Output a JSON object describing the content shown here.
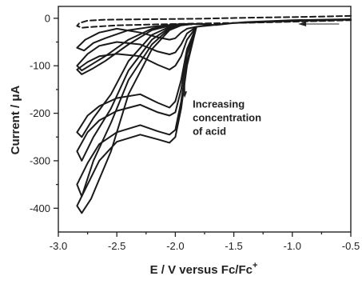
{
  "chart_data": {
    "type": "line",
    "title": "",
    "xlabel": "E / V versus Fc/Fc",
    "xlabel_superscript": "+",
    "ylabel": "Current / μA",
    "xlim": [
      -3.0,
      -0.5
    ],
    "ylim": [
      -450,
      25
    ],
    "x_reversed_axis_direction_note": "",
    "xticks": [
      -3.0,
      -2.5,
      -2.0,
      -1.5,
      -1.0,
      -0.5
    ],
    "xtick_labels": [
      "-3.0",
      "-2.5",
      "-2.0",
      "-1.5",
      "-1.0",
      "-0.5"
    ],
    "yticks": [
      0,
      -100,
      -200,
      -300,
      -400
    ],
    "ytick_labels": [
      "0",
      "-100",
      "-200",
      "-300",
      "-400"
    ],
    "grid": false,
    "legend": "none",
    "annotation": {
      "lines": [
        "Increasing",
        "concentration",
        "of acid"
      ],
      "arrow_direction": "down",
      "x": -1.92,
      "y": -90
    },
    "scan_arrow": {
      "direction": "left",
      "x_from": -0.6,
      "x_to": -0.95,
      "y": -12
    },
    "series": [
      {
        "style": "dashed",
        "x": [
          -0.5,
          -0.9,
          -1.4,
          -1.8,
          -2.2,
          -2.6,
          -2.75,
          -2.82,
          -2.84,
          -2.8,
          -2.7,
          -2.5,
          -2.2,
          -1.8,
          -1.3,
          -0.8,
          -0.5
        ],
        "y": [
          5,
          3,
          1,
          -1,
          -2,
          -3,
          -5,
          -10,
          -16,
          -20,
          -18,
          -15,
          -13,
          -11,
          -9,
          -6,
          -4
        ]
      },
      {
        "style": "solid",
        "x": [
          -0.5,
          -1.0,
          -1.4,
          -1.6,
          -1.7,
          -1.82,
          -1.9,
          -1.95,
          -2.0,
          -2.05,
          -2.15,
          -2.3,
          -2.5,
          -2.65,
          -2.77,
          -2.84,
          -2.78,
          -2.7,
          -2.6,
          -2.4,
          -2.2,
          -2.05,
          -1.95,
          -1.85,
          -1.75,
          -1.65,
          -1.5,
          -1.0,
          -0.5
        ],
        "y": [
          -2,
          -4,
          -8,
          -12,
          -15,
          -18,
          -22,
          -30,
          -42,
          -45,
          -40,
          -30,
          -22,
          -30,
          -45,
          -62,
          -68,
          -52,
          -42,
          -25,
          -18,
          -14,
          -12,
          -12,
          -13,
          -14,
          -10,
          -6,
          -3
        ]
      },
      {
        "style": "solid",
        "x": [
          -1.82,
          -1.9,
          -1.95,
          -2.0,
          -2.05,
          -2.15,
          -2.3,
          -2.5,
          -2.65,
          -2.75,
          -2.84,
          -2.8,
          -2.7,
          -2.6,
          -2.4,
          -2.2,
          -2.05,
          -1.95,
          -1.85,
          -1.75
        ],
        "y": [
          -18,
          -32,
          -55,
          -72,
          -76,
          -70,
          -55,
          -50,
          -58,
          -75,
          -100,
          -110,
          -95,
          -80,
          -45,
          -22,
          -15,
          -13,
          -12,
          -12
        ]
      },
      {
        "style": "solid",
        "x": [
          -1.82,
          -1.9,
          -1.95,
          -2.0,
          -2.05,
          -2.15,
          -2.3,
          -2.5,
          -2.65,
          -2.75,
          -2.84,
          -2.8,
          -2.7,
          -2.6,
          -2.4,
          -2.2,
          -2.05,
          -1.95,
          -1.85
        ],
        "y": [
          -18,
          -45,
          -80,
          -100,
          -108,
          -98,
          -80,
          -75,
          -80,
          -92,
          -108,
          -118,
          -105,
          -90,
          -55,
          -25,
          -16,
          -13,
          -12
        ]
      },
      {
        "style": "solid",
        "x": [
          -1.82,
          -1.9,
          -1.95,
          -2.0,
          -2.05,
          -2.15,
          -2.3,
          -2.5,
          -2.65,
          -2.75,
          -2.84,
          -2.8,
          -2.7,
          -2.55,
          -2.4,
          -2.2,
          -2.05,
          -1.95,
          -1.85
        ],
        "y": [
          -18,
          -65,
          -130,
          -175,
          -188,
          -178,
          -160,
          -168,
          -185,
          -205,
          -240,
          -250,
          -210,
          -160,
          -90,
          -35,
          -18,
          -14,
          -12
        ]
      },
      {
        "style": "solid",
        "x": [
          -1.82,
          -1.9,
          -1.95,
          -2.0,
          -2.05,
          -2.15,
          -2.3,
          -2.5,
          -2.65,
          -2.75,
          -2.84,
          -2.8,
          -2.7,
          -2.55,
          -2.4,
          -2.2,
          -2.05,
          -1.95,
          -1.85
        ],
        "y": [
          -18,
          -75,
          -150,
          -198,
          -205,
          -198,
          -182,
          -195,
          -215,
          -240,
          -280,
          -300,
          -250,
          -190,
          -110,
          -45,
          -20,
          -14,
          -12
        ]
      },
      {
        "style": "solid",
        "x": [
          -1.82,
          -1.9,
          -1.95,
          -2.0,
          -2.05,
          -2.15,
          -2.3,
          -2.5,
          -2.65,
          -2.75,
          -2.84,
          -2.8,
          -2.7,
          -2.55,
          -2.4,
          -2.2,
          -2.05,
          -1.95,
          -1.85
        ],
        "y": [
          -18,
          -90,
          -175,
          -235,
          -245,
          -238,
          -225,
          -240,
          -265,
          -305,
          -350,
          -375,
          -300,
          -220,
          -130,
          -55,
          -22,
          -14,
          -12
        ]
      },
      {
        "style": "solid",
        "x": [
          -1.82,
          -1.9,
          -1.95,
          -2.0,
          -2.05,
          -2.15,
          -2.3,
          -2.5,
          -2.65,
          -2.75,
          -2.84,
          -2.8,
          -2.72,
          -2.55,
          -2.4,
          -2.2,
          -2.05,
          -1.95,
          -1.85
        ],
        "y": [
          -18,
          -100,
          -190,
          -250,
          -262,
          -255,
          -245,
          -260,
          -300,
          -350,
          -395,
          -410,
          -380,
          -280,
          -160,
          -65,
          -25,
          -15,
          -12
        ]
      }
    ]
  }
}
